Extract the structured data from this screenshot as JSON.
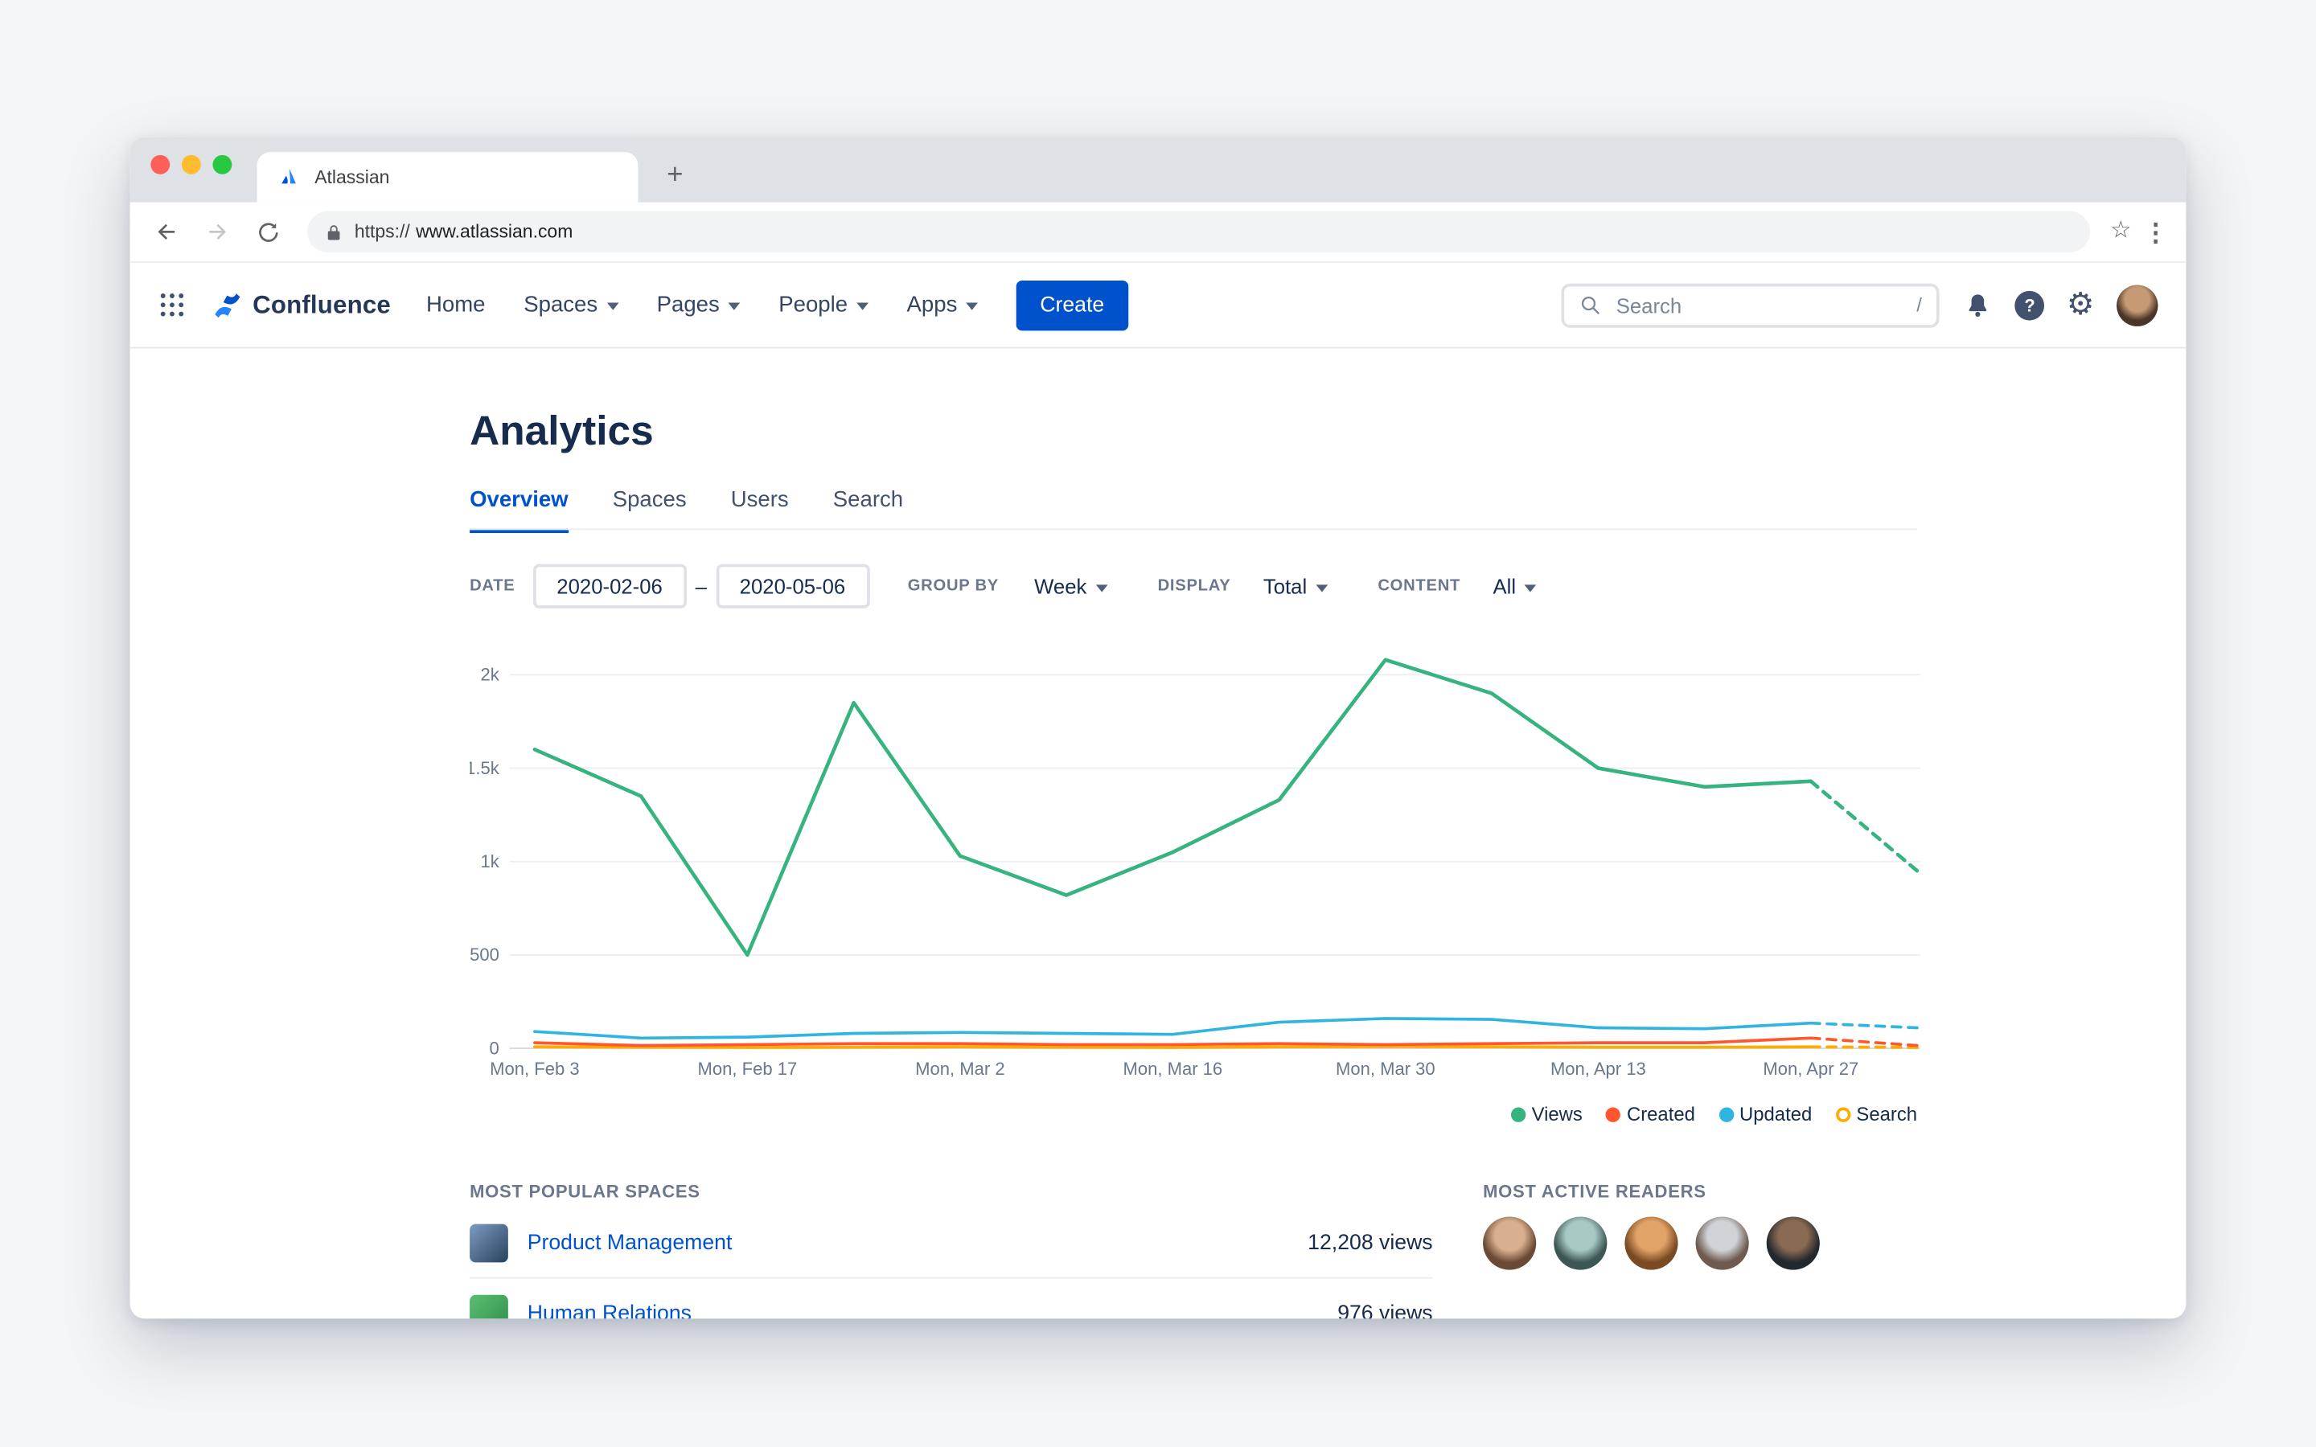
{
  "browser": {
    "tab": {
      "title": "Atlassian"
    },
    "new_tab_button": "+",
    "url": {
      "scheme": "https://",
      "host": "www.atlassian.com"
    }
  },
  "header": {
    "product_name": "Confluence",
    "nav": [
      {
        "label": "Home"
      },
      {
        "label": "Spaces"
      },
      {
        "label": "Pages"
      },
      {
        "label": "People"
      },
      {
        "label": "Apps"
      }
    ],
    "create_button": "Create",
    "search": {
      "placeholder": "Search",
      "shortcut_hint": "/"
    }
  },
  "page": {
    "title": "Analytics",
    "tabs": [
      {
        "label": "Overview",
        "active": true
      },
      {
        "label": "Spaces",
        "active": false
      },
      {
        "label": "Users",
        "active": false
      },
      {
        "label": "Search",
        "active": false
      }
    ],
    "filters": {
      "date_label": "DATE",
      "date_from": "2020-02-06",
      "date_separator": "–",
      "date_to": "2020-05-06",
      "group_by_label": "GROUP BY",
      "group_by_value": "Week",
      "display_label": "DISPLAY",
      "display_value": "Total",
      "content_label": "CONTENT",
      "content_value": "All"
    }
  },
  "chart_data": {
    "type": "line",
    "title": "",
    "xlabel": "",
    "ylabel": "",
    "x_points": [
      "Feb 3",
      "Feb 10",
      "Feb 17",
      "Feb 24",
      "Mar 2",
      "Mar 9",
      "Mar 16",
      "Mar 23",
      "Mar 30",
      "Apr 6",
      "Apr 13",
      "Apr 20",
      "Apr 27",
      "May 4"
    ],
    "x_tick_labels": [
      "Mon, Feb 3",
      "Mon, Feb 17",
      "Mon, Mar 2",
      "Mon, Mar 16",
      "Mon, Mar 30",
      "Mon, Apr 13",
      "Mon, Apr 27"
    ],
    "x_tick_indices": [
      0,
      2,
      4,
      6,
      8,
      10,
      12
    ],
    "ylim": [
      0,
      2130
    ],
    "yticks": [
      {
        "value": 0,
        "label": "0"
      },
      {
        "value": 500,
        "label": "500"
      },
      {
        "value": 1000,
        "label": "1k"
      },
      {
        "value": 1500,
        "label": "1.5k"
      },
      {
        "value": 2000,
        "label": "2k"
      }
    ],
    "grid": true,
    "legend_position": "bottom-right",
    "dashed_last_segment": true,
    "series": [
      {
        "name": "Views",
        "color": "#36B37E",
        "values": [
          1600,
          1350,
          500,
          1850,
          1030,
          820,
          1050,
          1330,
          2080,
          1900,
          1500,
          1400,
          1430,
          950
        ]
      },
      {
        "name": "Created",
        "color": "#FF5630",
        "values": [
          30,
          15,
          20,
          25,
          25,
          20,
          20,
          25,
          20,
          25,
          30,
          30,
          55,
          15
        ]
      },
      {
        "name": "Updated",
        "color": "#2FB5E0",
        "values": [
          90,
          55,
          60,
          80,
          85,
          80,
          75,
          140,
          160,
          155,
          110,
          105,
          135,
          110
        ]
      },
      {
        "name": "Search",
        "color": "#FFAB00",
        "values": [
          8,
          6,
          5,
          6,
          8,
          6,
          5,
          8,
          10,
          8,
          6,
          6,
          8,
          5
        ],
        "legend_style": "ring"
      }
    ]
  },
  "popular_spaces": {
    "heading": "MOST POPULAR SPACES",
    "rows": [
      {
        "name": "Product Management",
        "views": "12,208 views",
        "icon_colors": [
          "#7d9cc0",
          "#27425f"
        ]
      },
      {
        "name": "Human Relations",
        "views": "976 views",
        "icon_colors": [
          "#5bbf72",
          "#2e8c4a"
        ]
      }
    ]
  },
  "active_readers": {
    "heading": "MOST ACTIVE READERS",
    "avatars": [
      {
        "light": "#d9b08f",
        "dark": "#6b4a35"
      },
      {
        "light": "#a8c8c4",
        "dark": "#3c5654"
      },
      {
        "light": "#e2a368",
        "dark": "#7a4a22"
      },
      {
        "light": "#cfd3d8",
        "dark": "#6e5a4e"
      },
      {
        "light": "#8a6a52",
        "dark": "#23282f"
      }
    ]
  },
  "colors": {
    "accent": "#0052CC",
    "link": "#0052CC"
  }
}
